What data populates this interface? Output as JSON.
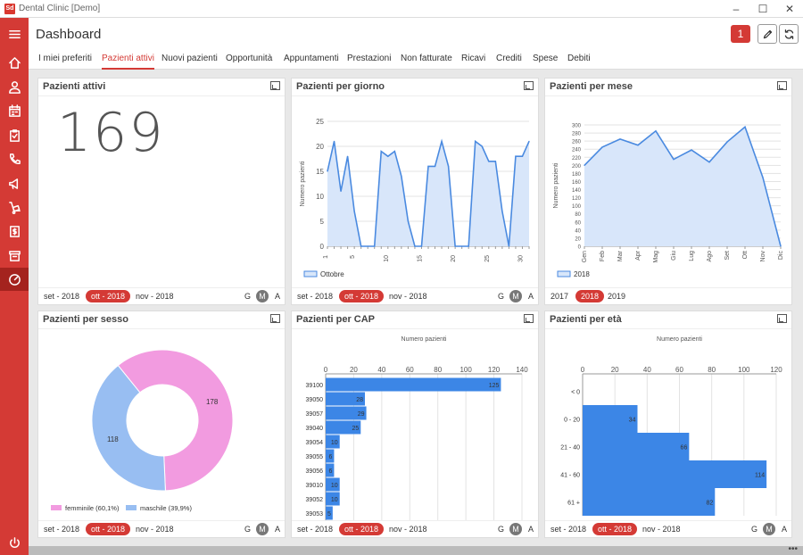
{
  "window": {
    "title": "Dental Clinic [Demo]",
    "logo": "Sd"
  },
  "header": {
    "title": "Dashboard",
    "notifications": "1"
  },
  "tabs": [
    "I miei preferiti",
    "Pazienti attivi",
    "Nuovi pazienti",
    "Opportunità",
    "Appuntamenti",
    "Prestazioni",
    "Non fatturate",
    "Ricavi",
    "Crediti",
    "Spese",
    "Debiti"
  ],
  "sidebar_icons": [
    "menu-icon",
    "home-icon",
    "user-icon",
    "calendar-icon",
    "clipboard-icon",
    "phone-icon",
    "megaphone-icon",
    "dolly-icon",
    "document-dollar-icon",
    "archive-icon",
    "dashboard-gauge-icon",
    "power-icon"
  ],
  "colors": {
    "accent": "#d43a35",
    "bar": "#3c86e6",
    "area_fill": "#d8e6fa",
    "area_line": "#4a8ae0",
    "female": "#f29be0",
    "male": "#98bef2"
  },
  "cards": {
    "active": {
      "title": "Pazienti attivi",
      "value": "169",
      "footer": {
        "prev": "set - 2018",
        "current": "ott - 2018",
        "next": "nov - 2018",
        "g": "G",
        "m": "M",
        "a": "A"
      }
    },
    "per_day": {
      "title": "Pazienti per giorno",
      "footer": {
        "prev": "set - 2018",
        "current": "ott - 2018",
        "next": "nov - 2018",
        "g": "G",
        "m": "M",
        "a": "A"
      }
    },
    "per_month": {
      "title": "Pazienti per mese",
      "footer": {
        "prev": "2017",
        "current": "2018",
        "next": "2019"
      }
    },
    "by_sex": {
      "title": "Pazienti per sesso",
      "footer": {
        "prev": "set - 2018",
        "current": "ott - 2018",
        "next": "nov - 2018",
        "g": "G",
        "m": "M",
        "a": "A"
      }
    },
    "by_cap": {
      "title": "Pazienti per CAP",
      "footer": {
        "prev": "set - 2018",
        "current": "ott - 2018",
        "next": "nov - 2018",
        "g": "G",
        "m": "M",
        "a": "A"
      }
    },
    "by_age": {
      "title": "Pazienti per età",
      "footer": {
        "prev": "set - 2018",
        "current": "ott - 2018",
        "next": "nov - 2018",
        "g": "G",
        "m": "M",
        "a": "A"
      }
    }
  },
  "chart_data": [
    {
      "id": "per_day",
      "type": "area",
      "ylabel": "Numero pazienti",
      "x": [
        1,
        2,
        3,
        4,
        5,
        6,
        7,
        8,
        9,
        10,
        11,
        12,
        13,
        14,
        15,
        16,
        17,
        18,
        19,
        20,
        21,
        22,
        23,
        24,
        25,
        26,
        27,
        28,
        29,
        30,
        31
      ],
      "x_ticks": [
        1,
        5,
        10,
        15,
        20,
        25,
        30
      ],
      "series": [
        {
          "name": "Ottobre",
          "values": [
            15,
            21,
            11,
            18,
            7,
            0,
            0,
            0,
            19,
            18,
            19,
            14,
            5,
            0,
            0,
            16,
            16,
            21,
            16,
            0,
            0,
            0,
            21,
            20,
            17,
            17,
            7,
            0,
            18,
            18,
            21
          ]
        }
      ],
      "ylim": [
        0,
        25
      ],
      "y_ticks": [
        0,
        5,
        10,
        15,
        20,
        25
      ],
      "grid": true,
      "legend": "bottom-left"
    },
    {
      "id": "per_month",
      "type": "area",
      "ylabel": "Numero pazienti",
      "categories": [
        "Gen",
        "Feb",
        "Mar",
        "Apr",
        "Mag",
        "Giu",
        "Lug",
        "Ago",
        "Set",
        "Ott",
        "Nov",
        "Dic"
      ],
      "series": [
        {
          "name": "2018",
          "values": [
            200,
            245,
            265,
            250,
            285,
            215,
            238,
            208,
            258,
            295,
            170,
            0
          ]
        }
      ],
      "ylim": [
        0,
        300
      ],
      "y_ticks": [
        0,
        20,
        40,
        60,
        80,
        100,
        120,
        140,
        160,
        180,
        200,
        220,
        240,
        260,
        280,
        300
      ],
      "grid": true,
      "legend": "bottom-left"
    },
    {
      "id": "by_sex",
      "type": "pie",
      "categories": [
        "femminile (60,1%)",
        "maschile (39,9%)"
      ],
      "values": [
        178,
        118
      ],
      "value_labels": [
        "178",
        "118"
      ],
      "legend": "bottom"
    },
    {
      "id": "by_cap",
      "type": "bar",
      "orientation": "horizontal",
      "xlabel": "Numero pazienti",
      "categories": [
        "39100",
        "39050",
        "39057",
        "39040",
        "39054",
        "39055",
        "39056",
        "39010",
        "39052",
        "39053"
      ],
      "values": [
        125,
        28,
        29,
        25,
        10,
        6,
        6,
        10,
        10,
        5
      ],
      "xlim": [
        0,
        140
      ],
      "x_ticks": [
        0,
        20,
        40,
        60,
        80,
        100,
        120,
        140
      ],
      "grid": true
    },
    {
      "id": "by_age",
      "type": "bar",
      "orientation": "horizontal",
      "xlabel": "Numero pazienti",
      "categories": [
        "< 0",
        "0 - 20",
        "21 - 40",
        "41 - 60",
        "61 +"
      ],
      "values": [
        0,
        34,
        66,
        114,
        82
      ],
      "xlim": [
        0,
        120
      ],
      "x_ticks": [
        0,
        20,
        40,
        60,
        80,
        100,
        120
      ],
      "grid": true
    }
  ]
}
